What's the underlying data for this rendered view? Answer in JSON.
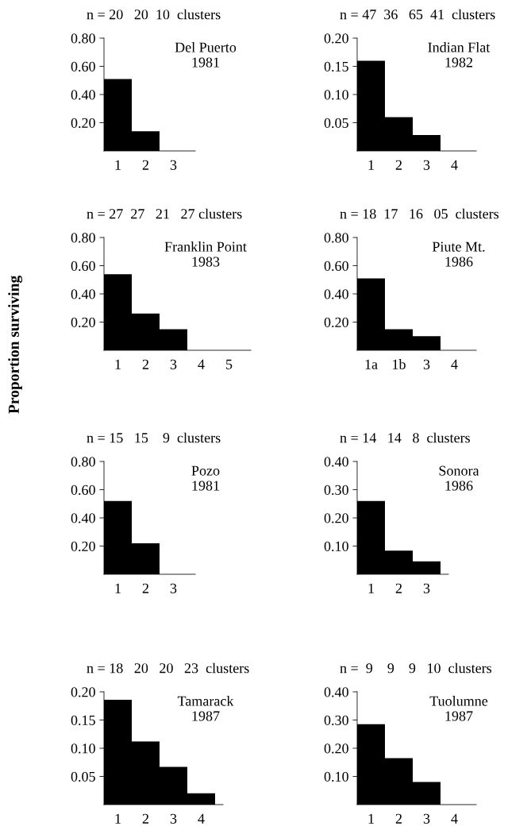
{
  "chart_data": [
    {
      "type": "bar",
      "title": "n = 20   20  10  clusters",
      "annotations": [
        "Del Puerto\n1981"
      ],
      "categories": [
        "1",
        "2",
        "3"
      ],
      "values": [
        0.51,
        0.14,
        0
      ],
      "color": "#000000",
      "ylim": [
        0,
        0.8
      ],
      "yticks": [
        {
          "value": 0.2,
          "label": "0.20"
        },
        {
          "value": 0.4,
          "label": "0.40"
        },
        {
          "value": 0.6,
          "label": "0.60"
        },
        {
          "value": 0.8,
          "label": "0.80"
        }
      ],
      "grid": false
    },
    {
      "type": "bar",
      "title": "n = 47  36   65  41  clusters",
      "annotations": [
        "Indian Flat\n1982"
      ],
      "categories": [
        "1",
        "2",
        "3",
        "4"
      ],
      "values": [
        0.16,
        0.06,
        0.028,
        0
      ],
      "color": "#000000",
      "ylim": [
        0,
        0.2
      ],
      "yticks": [
        {
          "value": 0.05,
          "label": "0.05"
        },
        {
          "value": 0.1,
          "label": "0.10"
        },
        {
          "value": 0.15,
          "label": "0.15"
        },
        {
          "value": 0.2,
          "label": "0.20"
        }
      ],
      "grid": false
    },
    {
      "type": "bar",
      "title": "n = 27  27   21   27 clusters",
      "annotations": [
        "Franklin Point\n1983"
      ],
      "ylabel": "Proportion surviving",
      "categories": [
        "1",
        "2",
        "3",
        "4",
        "5"
      ],
      "values": [
        0.54,
        0.26,
        0.15,
        0,
        0
      ],
      "color": "#000000",
      "ylim": [
        0,
        0.8
      ],
      "yticks": [
        {
          "value": 0.2,
          "label": "0.20"
        },
        {
          "value": 0.4,
          "label": "0.40"
        },
        {
          "value": 0.6,
          "label": "0.60"
        },
        {
          "value": 0.8,
          "label": "0.80"
        }
      ],
      "grid": false
    },
    {
      "type": "bar",
      "title": "n = 18  17   16   05  clusters",
      "annotations": [
        "Piute Mt.\n1986"
      ],
      "categories": [
        "1a",
        "1b",
        "3",
        "4"
      ],
      "values": [
        0.51,
        0.15,
        0.1,
        0
      ],
      "color": "#000000",
      "ylim": [
        0,
        0.8
      ],
      "yticks": [
        {
          "value": 0.2,
          "label": "0.20"
        },
        {
          "value": 0.4,
          "label": "0.40"
        },
        {
          "value": 0.6,
          "label": "0.60"
        },
        {
          "value": 0.8,
          "label": "0.80"
        }
      ],
      "grid": false
    },
    {
      "type": "bar",
      "title": "n = 15   15    9  clusters",
      "annotations": [
        "Pozo\n1981"
      ],
      "categories": [
        "1",
        "2",
        "3"
      ],
      "values": [
        0.52,
        0.22,
        0
      ],
      "color": "#000000",
      "ylim": [
        0,
        0.8
      ],
      "yticks": [
        {
          "value": 0.2,
          "label": "0.20"
        },
        {
          "value": 0.4,
          "label": "0.40"
        },
        {
          "value": 0.6,
          "label": "0.60"
        },
        {
          "value": 0.8,
          "label": "0.80"
        }
      ],
      "grid": false
    },
    {
      "type": "bar",
      "title": "n = 14   14   8  clusters",
      "annotations": [
        "Sonora\n1986"
      ],
      "categories": [
        "1",
        "2",
        "3"
      ],
      "values": [
        0.26,
        0.084,
        0.046
      ],
      "color": "#000000",
      "ylim": [
        0,
        0.4
      ],
      "yticks": [
        {
          "value": 0.1,
          "label": "0.10"
        },
        {
          "value": 0.2,
          "label": "0.20"
        },
        {
          "value": 0.3,
          "label": "0.30"
        },
        {
          "value": 0.4,
          "label": "0.40"
        }
      ],
      "grid": false
    },
    {
      "type": "bar",
      "title": "n = 18   20   20   23  clusters",
      "annotations": [
        "Tamarack\n1987"
      ],
      "categories": [
        "1",
        "2",
        "3",
        "4"
      ],
      "values": [
        0.186,
        0.112,
        0.067,
        0.02
      ],
      "color": "#000000",
      "ylim": [
        0,
        0.2
      ],
      "yticks": [
        {
          "value": 0.05,
          "label": "0.05"
        },
        {
          "value": 0.1,
          "label": "0.10"
        },
        {
          "value": 0.15,
          "label": "0.15"
        },
        {
          "value": 0.2,
          "label": "0.20"
        }
      ],
      "grid": false
    },
    {
      "type": "bar",
      "title": "n =  9    9    9   10  clusters",
      "annotations": [
        "Tuolumne\n1987"
      ],
      "categories": [
        "1",
        "2",
        "3",
        "4"
      ],
      "values": [
        0.285,
        0.165,
        0.08,
        0
      ],
      "color": "#000000",
      "ylim": [
        0,
        0.4
      ],
      "yticks": [
        {
          "value": 0.1,
          "label": "0.10"
        },
        {
          "value": 0.2,
          "label": "0.20"
        },
        {
          "value": 0.3,
          "label": "0.30"
        },
        {
          "value": 0.4,
          "label": "0.40"
        }
      ],
      "grid": false
    }
  ]
}
